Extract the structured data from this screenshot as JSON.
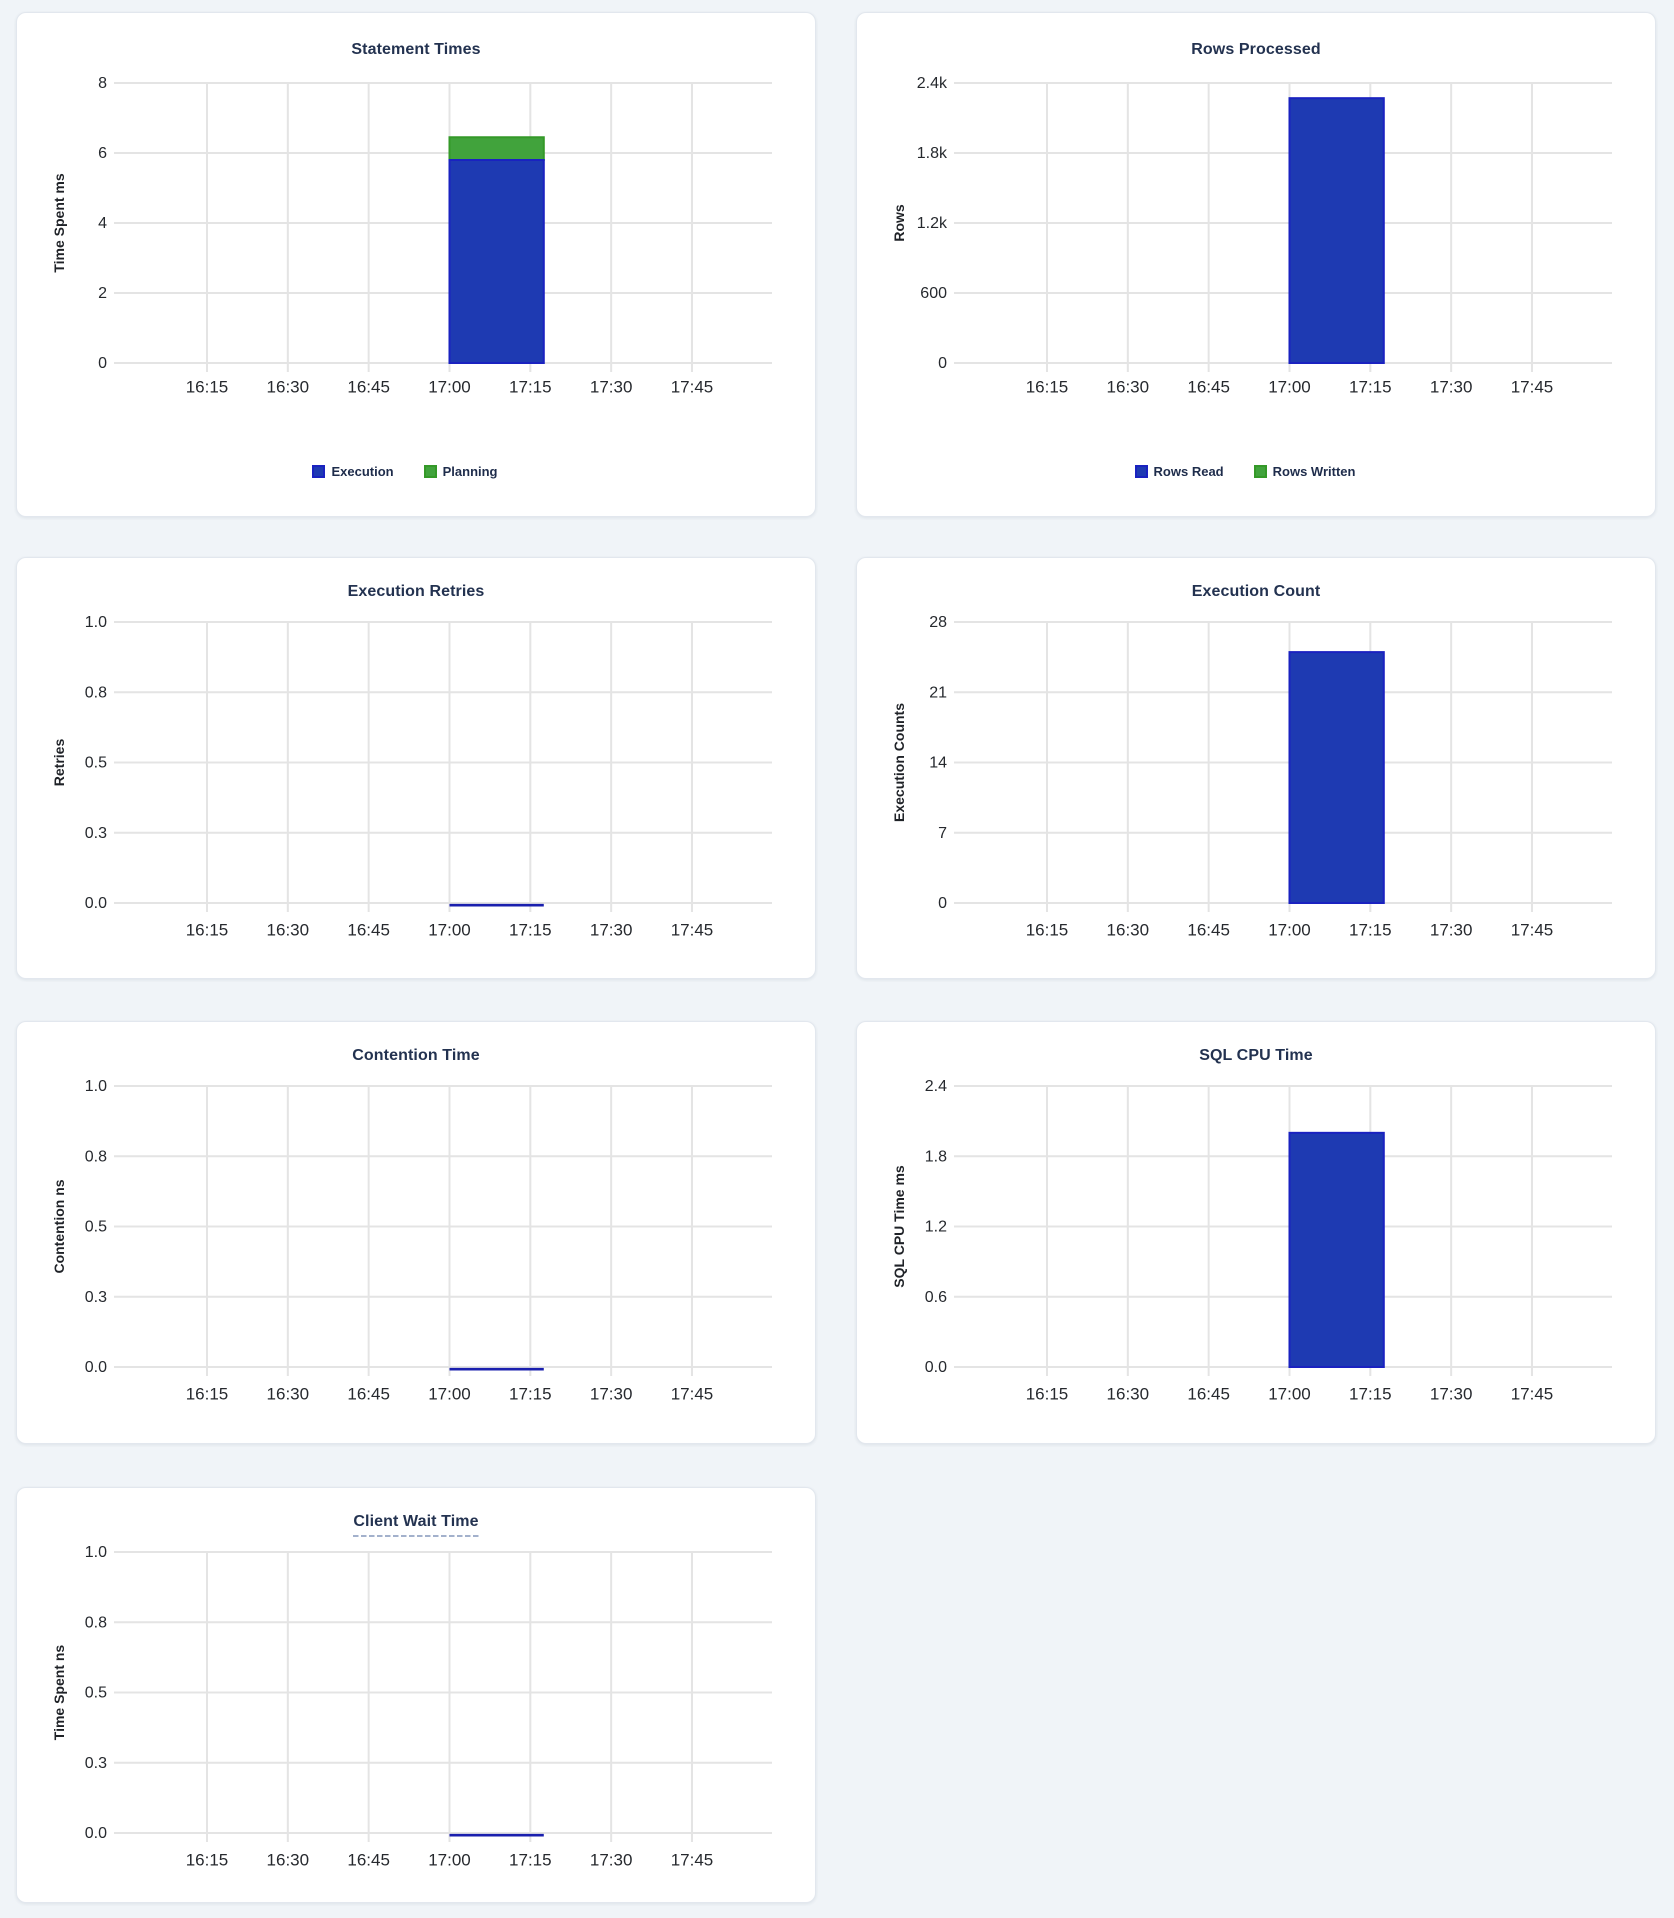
{
  "page": {
    "background_color": "#f0f4f8",
    "card_color": "#ffffff",
    "title_color": "#233250"
  },
  "palette": {
    "blue": {
      "fill": "#1e3ab2",
      "stroke": "#1a22c0"
    },
    "green": {
      "fill": "#41a33c",
      "stroke": "#349928"
    }
  },
  "x_axis": {
    "tick_labels": [
      "16:15",
      "16:30",
      "16:45",
      "17:00",
      "17:15",
      "17:30",
      "17:45"
    ],
    "tick_interval_minutes": 15
  },
  "chart_data": [
    {
      "type": "bar",
      "title": "Statement Times",
      "ylabel": "Time Spent ms",
      "ymax": 8,
      "ytick_labels": [
        "0",
        "2",
        "4",
        "6",
        "8"
      ],
      "x_tick_labels": [
        "16:15",
        "16:30",
        "16:45",
        "17:00",
        "17:15",
        "17:30",
        "17:45"
      ],
      "stacked": true,
      "legend": [
        "Execution",
        "Planning"
      ],
      "legend_position": "bottom",
      "grid": true,
      "series": [
        {
          "name": "Execution",
          "color": "blue",
          "bars": [
            {
              "x_start": "17:00",
              "x_end": "17:17:30",
              "y": 5.8
            }
          ]
        },
        {
          "name": "Planning",
          "color": "green",
          "bars": [
            {
              "x_start": "17:00",
              "x_end": "17:17:30",
              "y": 0.65
            }
          ]
        }
      ]
    },
    {
      "type": "bar",
      "title": "Rows Processed",
      "ylabel": "Rows",
      "ymax": 2400,
      "ytick_labels": [
        "0",
        "600",
        "1.2k",
        "1.8k",
        "2.4k"
      ],
      "x_tick_labels": [
        "16:15",
        "16:30",
        "16:45",
        "17:00",
        "17:15",
        "17:30",
        "17:45"
      ],
      "stacked": true,
      "legend": [
        "Rows Read",
        "Rows Written"
      ],
      "legend_position": "bottom",
      "grid": true,
      "series": [
        {
          "name": "Rows Read",
          "color": "blue",
          "bars": [
            {
              "x_start": "17:00",
              "x_end": "17:17:30",
              "y": 2270
            }
          ]
        },
        {
          "name": "Rows Written",
          "color": "green",
          "bars": [
            {
              "x_start": "17:00",
              "x_end": "17:17:30",
              "y": 0,
              "hidden": true
            }
          ]
        }
      ]
    },
    {
      "type": "bar",
      "title": "Execution Retries",
      "ylabel": "Retries",
      "ymax": 1,
      "ytick_labels": [
        "0.0",
        "0.3",
        "0.5",
        "0.8",
        "1.0"
      ],
      "x_tick_labels": [
        "16:15",
        "16:30",
        "16:45",
        "17:00",
        "17:15",
        "17:30",
        "17:45"
      ],
      "stacked": false,
      "grid": true,
      "series": [
        {
          "color": "blue",
          "bars": [
            {
              "x_start": "17:00",
              "x_end": "17:17:30",
              "y": 0
            }
          ]
        }
      ]
    },
    {
      "type": "bar",
      "title": "Execution Count",
      "ylabel": "Execution Counts",
      "ymax": 28,
      "ytick_labels": [
        "0",
        "7",
        "14",
        "21",
        "28"
      ],
      "x_tick_labels": [
        "16:15",
        "16:30",
        "16:45",
        "17:00",
        "17:15",
        "17:30",
        "17:45"
      ],
      "stacked": false,
      "grid": true,
      "series": [
        {
          "color": "blue",
          "bars": [
            {
              "x_start": "17:00",
              "x_end": "17:17:30",
              "y": 25
            }
          ]
        }
      ]
    },
    {
      "type": "bar",
      "title": "Contention Time",
      "ylabel": "Contention ns",
      "ymax": 1,
      "ytick_labels": [
        "0.0",
        "0.3",
        "0.5",
        "0.8",
        "1.0"
      ],
      "x_tick_labels": [
        "16:15",
        "16:30",
        "16:45",
        "17:00",
        "17:15",
        "17:30",
        "17:45"
      ],
      "stacked": false,
      "grid": true,
      "series": [
        {
          "color": "blue",
          "bars": [
            {
              "x_start": "17:00",
              "x_end": "17:17:30",
              "y": 0
            }
          ]
        }
      ]
    },
    {
      "type": "bar",
      "title": "SQL CPU Time",
      "ylabel": "SQL CPU Time ms",
      "ymax": 2.4,
      "ytick_labels": [
        "0.0",
        "0.6",
        "1.2",
        "1.8",
        "2.4"
      ],
      "x_tick_labels": [
        "16:15",
        "16:30",
        "16:45",
        "17:00",
        "17:15",
        "17:30",
        "17:45"
      ],
      "stacked": false,
      "grid": true,
      "series": [
        {
          "color": "blue",
          "bars": [
            {
              "x_start": "17:00",
              "x_end": "17:17:30",
              "y": 2.0
            }
          ]
        }
      ]
    },
    {
      "type": "bar",
      "title": "Client Wait Time",
      "title_has_tooltip": true,
      "ylabel": "Time Spent ns",
      "ymax": 1,
      "ytick_labels": [
        "0.0",
        "0.3",
        "0.5",
        "0.8",
        "1.0"
      ],
      "x_tick_labels": [
        "16:15",
        "16:30",
        "16:45",
        "17:00",
        "17:15",
        "17:30",
        "17:45"
      ],
      "stacked": false,
      "grid": true,
      "series": [
        {
          "color": "blue",
          "bars": [
            {
              "x_start": "17:00",
              "x_end": "17:17:30",
              "y": 0
            }
          ]
        }
      ]
    }
  ]
}
